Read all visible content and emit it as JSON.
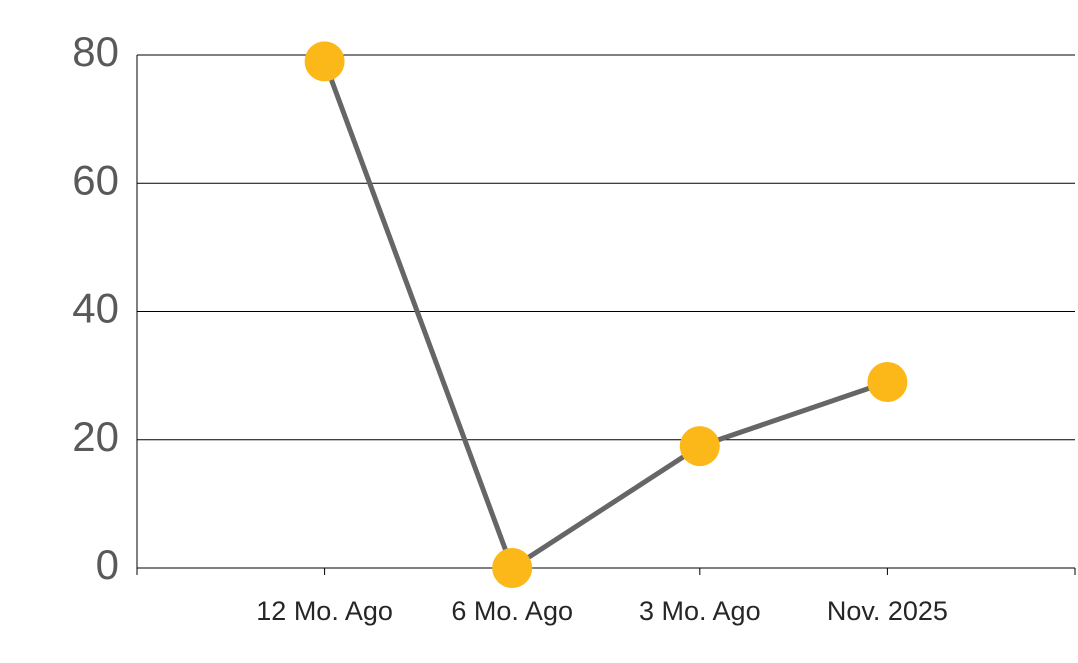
{
  "chart_data": {
    "type": "line",
    "categories": [
      "12 Mo. Ago",
      "6 Mo. Ago",
      "3 Mo. Ago",
      "Nov. 2025"
    ],
    "values": [
      79,
      0,
      19,
      29
    ],
    "line_color": "#666666",
    "marker_color": "#fbb818",
    "ylim": [
      0,
      80
    ],
    "yticks": [
      0,
      20,
      40,
      60,
      80
    ],
    "grid": true
  }
}
